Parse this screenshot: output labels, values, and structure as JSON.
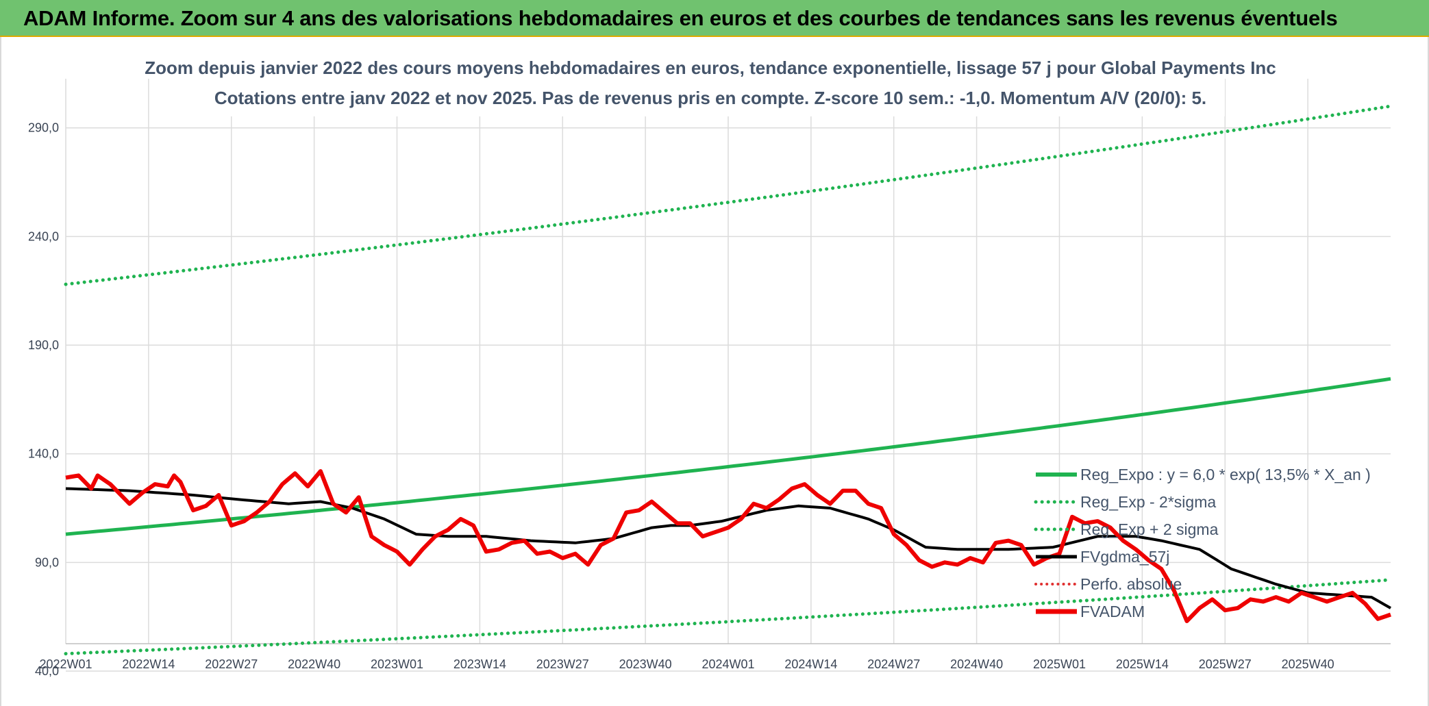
{
  "header": {
    "title": "ADAM Informe. Zoom sur 4 ans des valorisations hebdomadaires en euros et des courbes de tendances sans les revenus éventuels"
  },
  "colors": {
    "banner": "#70c26f",
    "trend": "#1fb350",
    "price": "#ee0000",
    "ma": "#000000",
    "perf": "#e03030"
  },
  "chart_data": {
    "type": "line",
    "title": "Zoom depuis janvier 2022 des cours moyens hebdomadaires en euros, tendance exponentielle, lissage 57 j pour Global Payments Inc",
    "subtitle": "Cotations entre janv 2022 et nov 2025. Pas de revenus pris en compte. Z-score 10 sem.: -1,0. Momentum A/V (20/0): 5.",
    "xlabel": "",
    "ylabel": "",
    "ylim": [
      40,
      300
    ],
    "y_ticks": [
      "40,0",
      "90,0",
      "140,0",
      "190,0",
      "240,0",
      "290,0"
    ],
    "y_tick_values": [
      40,
      90,
      140,
      190,
      240,
      290
    ],
    "x_ticks": [
      "2022W01",
      "2022W14",
      "2022W27",
      "2022W40",
      "2023W01",
      "2023W14",
      "2023W27",
      "2023W40",
      "2024W01",
      "2024W14",
      "2024W27",
      "2024W40",
      "2025W01",
      "2025W14",
      "2025W27",
      "2025W40"
    ],
    "n_weeks": 209,
    "grid": true,
    "legend_position": "right",
    "legend": [
      "Reg_Expo : y = 6,0 * exp( 13,5% *  X_an )",
      "Reg_Exp - 2*sigma",
      "Reg_Exp + 2 sigma",
      "FVgdma_57j",
      "Perfo. absolue",
      "FVADAM"
    ],
    "series": [
      {
        "name": "Reg_Expo : y = 6,0 * exp( 13,5% *  X_an )",
        "style": "solid",
        "start": 103,
        "end": 174.5
      },
      {
        "name": "Reg_Exp - 2*sigma",
        "style": "dotted",
        "start": 48,
        "end": 82
      },
      {
        "name": "Reg_Exp + 2 sigma",
        "style": "dotted",
        "start": 218,
        "end": 300
      },
      {
        "name": "FVgdma_57j",
        "style": "solid",
        "anchors": [
          [
            0,
            124
          ],
          [
            10,
            123
          ],
          [
            20,
            121
          ],
          [
            27,
            119
          ],
          [
            35,
            117
          ],
          [
            40,
            118
          ],
          [
            45,
            115
          ],
          [
            50,
            110
          ],
          [
            55,
            103
          ],
          [
            60,
            102
          ],
          [
            66,
            102
          ],
          [
            73,
            100
          ],
          [
            80,
            99
          ],
          [
            86,
            101
          ],
          [
            92,
            106
          ],
          [
            95,
            107
          ],
          [
            98,
            107
          ],
          [
            103,
            109
          ],
          [
            110,
            114
          ],
          [
            115,
            116
          ],
          [
            120,
            115
          ],
          [
            126,
            110
          ],
          [
            130,
            105
          ],
          [
            135,
            97
          ],
          [
            140,
            96
          ],
          [
            148,
            96
          ],
          [
            155,
            97
          ],
          [
            162,
            102
          ],
          [
            168,
            102
          ],
          [
            172,
            100
          ],
          [
            178,
            96
          ],
          [
            183,
            87
          ],
          [
            190,
            80
          ],
          [
            195,
            76
          ],
          [
            205,
            74
          ],
          [
            208,
            69
          ]
        ]
      },
      {
        "name": "Perfo. absolue",
        "style": "dotted",
        "anchors": []
      },
      {
        "name": "FVADAM",
        "style": "solid",
        "anchors": [
          [
            0,
            129
          ],
          [
            2,
            130
          ],
          [
            4,
            124
          ],
          [
            5,
            130
          ],
          [
            7,
            126
          ],
          [
            9,
            120
          ],
          [
            10,
            117
          ],
          [
            12,
            122
          ],
          [
            14,
            126
          ],
          [
            16,
            125
          ],
          [
            17,
            130
          ],
          [
            18,
            127
          ],
          [
            20,
            114
          ],
          [
            22,
            116
          ],
          [
            24,
            121
          ],
          [
            26,
            107
          ],
          [
            28,
            109
          ],
          [
            30,
            113
          ],
          [
            32,
            118
          ],
          [
            34,
            126
          ],
          [
            36,
            131
          ],
          [
            38,
            125
          ],
          [
            40,
            132
          ],
          [
            42,
            117
          ],
          [
            44,
            113
          ],
          [
            46,
            120
          ],
          [
            48,
            102
          ],
          [
            50,
            98
          ],
          [
            52,
            95
          ],
          [
            54,
            89
          ],
          [
            56,
            96
          ],
          [
            58,
            102
          ],
          [
            60,
            105
          ],
          [
            62,
            110
          ],
          [
            64,
            107
          ],
          [
            66,
            95
          ],
          [
            68,
            96
          ],
          [
            70,
            99
          ],
          [
            72,
            100
          ],
          [
            74,
            94
          ],
          [
            76,
            95
          ],
          [
            78,
            92
          ],
          [
            80,
            94
          ],
          [
            82,
            89
          ],
          [
            84,
            98
          ],
          [
            86,
            101
          ],
          [
            88,
            113
          ],
          [
            90,
            114
          ],
          [
            92,
            118
          ],
          [
            94,
            113
          ],
          [
            96,
            108
          ],
          [
            98,
            108
          ],
          [
            100,
            102
          ],
          [
            102,
            104
          ],
          [
            104,
            106
          ],
          [
            106,
            110
          ],
          [
            108,
            117
          ],
          [
            110,
            115
          ],
          [
            112,
            119
          ],
          [
            114,
            124
          ],
          [
            116,
            126
          ],
          [
            118,
            121
          ],
          [
            120,
            117
          ],
          [
            122,
            123
          ],
          [
            124,
            123
          ],
          [
            126,
            117
          ],
          [
            128,
            115
          ],
          [
            130,
            103
          ],
          [
            132,
            98
          ],
          [
            134,
            91
          ],
          [
            136,
            88
          ],
          [
            138,
            90
          ],
          [
            140,
            89
          ],
          [
            142,
            92
          ],
          [
            144,
            90
          ],
          [
            146,
            99
          ],
          [
            148,
            100
          ],
          [
            150,
            98
          ],
          [
            152,
            89
          ],
          [
            154,
            92
          ],
          [
            156,
            94
          ],
          [
            158,
            111
          ],
          [
            160,
            108
          ],
          [
            162,
            109
          ],
          [
            164,
            106
          ],
          [
            166,
            100
          ],
          [
            168,
            96
          ],
          [
            170,
            91
          ],
          [
            172,
            87
          ],
          [
            174,
            77
          ],
          [
            176,
            63
          ],
          [
            178,
            69
          ],
          [
            180,
            73
          ],
          [
            182,
            68
          ],
          [
            184,
            69
          ],
          [
            186,
            73
          ],
          [
            188,
            72
          ],
          [
            190,
            74
          ],
          [
            192,
            72
          ],
          [
            194,
            76
          ],
          [
            196,
            74
          ],
          [
            198,
            72
          ],
          [
            200,
            74
          ],
          [
            202,
            76
          ],
          [
            204,
            71
          ],
          [
            206,
            64
          ],
          [
            208,
            66
          ]
        ]
      }
    ]
  }
}
